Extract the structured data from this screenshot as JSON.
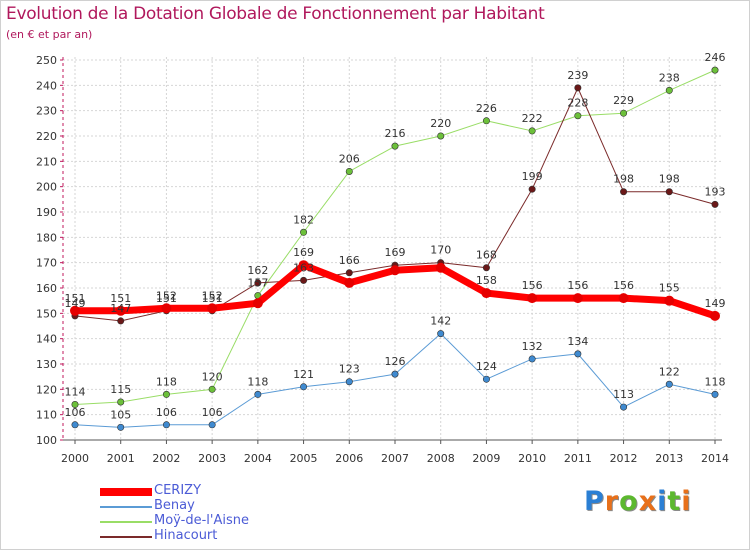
{
  "header": {
    "title": "Evolution de la Dotation Globale de Fonctionnement par Habitant",
    "subtitle": "(en € et par an)"
  },
  "logo": {
    "text": "Proxiti",
    "colors": [
      "#2b7fd4",
      "#e8701a",
      "#5cb82e",
      "#e8701a",
      "#2b7fd4",
      "#5cb82e",
      "#e8701a"
    ]
  },
  "chart_data": {
    "type": "line",
    "x": [
      "2000",
      "2001",
      "2002",
      "2003",
      "2004",
      "2005",
      "2006",
      "2007",
      "2008",
      "2009",
      "2010",
      "2011",
      "2012",
      "2013",
      "2014"
    ],
    "ylim": [
      100,
      250
    ],
    "yticks": [
      100,
      110,
      120,
      130,
      140,
      150,
      160,
      170,
      180,
      190,
      200,
      210,
      220,
      230,
      240,
      250
    ],
    "grid": true,
    "legend_position": "bottom-left",
    "series": [
      {
        "name": "CERIZY",
        "color": "#ff0000",
        "marker": "#e60000",
        "width": 7,
        "values": [
          151,
          151,
          152,
          152,
          154,
          169,
          162,
          167,
          168,
          158,
          156,
          156,
          156,
          155,
          149
        ],
        "labels": [
          "151",
          "151",
          "152",
          "152",
          "",
          "169",
          "",
          "",
          "",
          "158",
          "156",
          "156",
          "156",
          "155",
          "149"
        ]
      },
      {
        "name": "Benay",
        "color": "#5b9bd5",
        "marker": "#3f8ad0",
        "width": 1,
        "values": [
          106,
          105,
          106,
          106,
          118,
          121,
          123,
          126,
          142,
          124,
          132,
          134,
          113,
          122,
          118
        ],
        "labels": [
          "106",
          "105",
          "106",
          "106",
          "118",
          "121",
          "123",
          "126",
          "142",
          "124",
          "132",
          "134",
          "113",
          "122",
          "118"
        ]
      },
      {
        "name": "Moÿ-de-l'Aisne",
        "color": "#99dd66",
        "marker": "#6cc03a",
        "width": 1,
        "values": [
          114,
          115,
          118,
          120,
          157,
          182,
          206,
          216,
          220,
          226,
          222,
          228,
          229,
          238,
          246
        ],
        "labels": [
          "114",
          "115",
          "118",
          "120",
          "157",
          "182",
          "206",
          "216",
          "220",
          "226",
          "222",
          "228",
          "229",
          "238",
          "246"
        ]
      },
      {
        "name": "Hinacourt",
        "color": "#7b2a2a",
        "marker": "#6b1818",
        "width": 1,
        "values": [
          149,
          147,
          151,
          151,
          162,
          163,
          166,
          169,
          170,
          168,
          199,
          239,
          198,
          198,
          193
        ],
        "labels": [
          "149",
          "147",
          "151",
          "151",
          "162",
          "163",
          "166",
          "169",
          "170",
          "168",
          "199",
          "239",
          "198",
          "198",
          "193"
        ]
      }
    ]
  }
}
